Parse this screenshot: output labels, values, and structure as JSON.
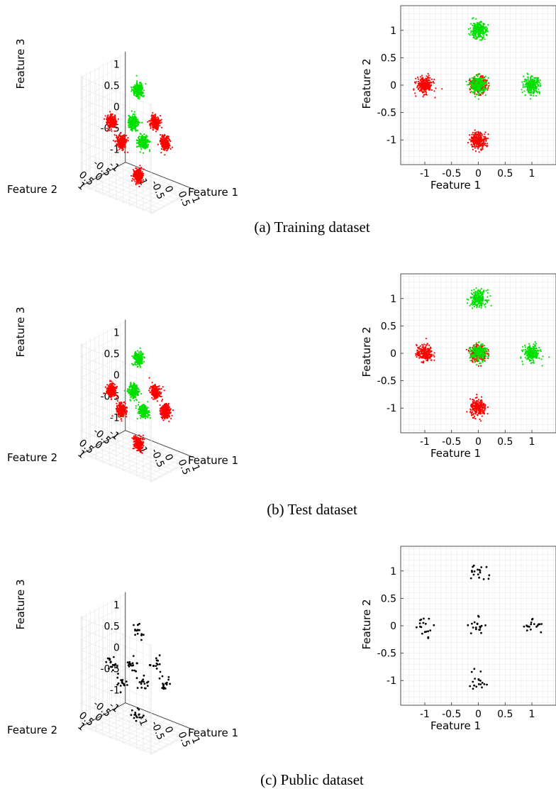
{
  "colors": {
    "class_a": "#ff0000",
    "class_b": "#00e000",
    "public": "#000000",
    "grid": "#e6e6e6",
    "axis": "#262626"
  },
  "panels": [
    {
      "caption": "(a) Training dataset",
      "type": "train"
    },
    {
      "caption": "(b) Test dataset",
      "type": "test"
    },
    {
      "caption": "(c) Public dataset",
      "type": "public"
    }
  ],
  "chart_data": [
    {
      "type": "scatter",
      "dimensions": 3,
      "panel": "(a) Training dataset",
      "axes": {
        "x": "Feature 1",
        "y": "Feature 2",
        "z": "Feature 3"
      },
      "xlim": [
        -1.3,
        1.3
      ],
      "ylim": [
        -1.3,
        1.3
      ],
      "zlim": [
        -1.3,
        1.3
      ],
      "xticks": [
        "-1",
        "-0.5",
        "0",
        "0.5",
        "1"
      ],
      "yticks": [
        "-1",
        "-0.5",
        "0",
        "0.5",
        "1"
      ],
      "zticks": [
        "1",
        "0.5",
        "0",
        "-0.5",
        "-1"
      ],
      "grid": true,
      "series": [
        {
          "color": "#ff0000",
          "clusters": [
            [
              1,
              0,
              0
            ],
            [
              -1,
              0,
              0
            ],
            [
              0,
              1,
              0
            ],
            [
              0,
              -1,
              0
            ],
            [
              0,
              0,
              -1
            ]
          ],
          "points_per_cluster": 260
        },
        {
          "color": "#00e000",
          "clusters": [
            [
              0,
              0,
              1
            ],
            [
              0.5,
              0.5,
              0
            ],
            [
              -0.5,
              -0.5,
              0
            ]
          ],
          "points_per_cluster": 260
        }
      ]
    },
    {
      "type": "scatter",
      "dimensions": 2,
      "panel": "(a) Training dataset",
      "xlabel": "Feature 1",
      "ylabel": "Feature 2",
      "xlim": [
        -1.45,
        1.45
      ],
      "ylim": [
        -1.45,
        1.45
      ],
      "xticks": [
        "-1",
        "-0.5",
        "0",
        "0.5",
        "1"
      ],
      "yticks": [
        "1",
        "0.5",
        "0",
        "-0.5",
        "-1"
      ],
      "grid": true,
      "series": [
        {
          "color": "#ff0000",
          "clusters": [
            [
              -1,
              0
            ],
            [
              0,
              0
            ],
            [
              0,
              -1
            ]
          ],
          "points_per_cluster": 260
        },
        {
          "color": "#00e000",
          "clusters": [
            [
              0,
              1
            ],
            [
              1,
              0
            ],
            [
              0,
              0
            ]
          ],
          "points_per_cluster": 260
        }
      ]
    },
    {
      "type": "scatter",
      "dimensions": 3,
      "panel": "(b) Test dataset",
      "axes": {
        "x": "Feature 1",
        "y": "Feature 2",
        "z": "Feature 3"
      },
      "xlim": [
        -1.3,
        1.3
      ],
      "ylim": [
        -1.3,
        1.3
      ],
      "zlim": [
        -1.3,
        1.3
      ],
      "xticks": [
        "-1",
        "-0.5",
        "0",
        "0.5",
        "1"
      ],
      "yticks": [
        "-1",
        "-0.5",
        "0",
        "0.5",
        "1"
      ],
      "zticks": [
        "1",
        "0.5",
        "0",
        "-0.5",
        "-1"
      ],
      "grid": true,
      "series": [
        {
          "color": "#ff0000",
          "clusters": [
            [
              1,
              0,
              0
            ],
            [
              -1,
              0,
              0
            ],
            [
              0,
              1,
              0
            ],
            [
              0,
              -1,
              0
            ],
            [
              0,
              0,
              -1
            ]
          ],
          "points_per_cluster": 230
        },
        {
          "color": "#00e000",
          "clusters": [
            [
              0,
              0,
              1
            ],
            [
              0.5,
              0.5,
              0
            ],
            [
              -0.5,
              -0.5,
              0
            ]
          ],
          "points_per_cluster": 230
        }
      ]
    },
    {
      "type": "scatter",
      "dimensions": 2,
      "panel": "(b) Test dataset",
      "xlabel": "Feature 1",
      "ylabel": "Feature 2",
      "xlim": [
        -1.45,
        1.45
      ],
      "ylim": [
        -1.45,
        1.45
      ],
      "xticks": [
        "-1",
        "-0.5",
        "0",
        "0.5",
        "1"
      ],
      "yticks": [
        "1",
        "0.5",
        "0",
        "-0.5",
        "-1"
      ],
      "grid": true,
      "series": [
        {
          "color": "#ff0000",
          "clusters": [
            [
              -1,
              0
            ],
            [
              0,
              0
            ],
            [
              0,
              -1
            ]
          ],
          "points_per_cluster": 230
        },
        {
          "color": "#00e000",
          "clusters": [
            [
              0,
              1
            ],
            [
              1,
              0
            ],
            [
              0,
              0
            ]
          ],
          "points_per_cluster": 230
        }
      ]
    },
    {
      "type": "scatter",
      "dimensions": 3,
      "panel": "(c) Public dataset",
      "axes": {
        "x": "Feature 1",
        "y": "Feature 2",
        "z": "Feature 3"
      },
      "xlim": [
        -1.3,
        1.3
      ],
      "ylim": [
        -1.3,
        1.3
      ],
      "zlim": [
        -1.3,
        1.3
      ],
      "xticks": [
        "-1",
        "-0.5",
        "0",
        "0.5",
        "1"
      ],
      "yticks": [
        "-1",
        "-0.5",
        "0",
        "0.5",
        "1"
      ],
      "zticks": [
        "1",
        "0.5",
        "0",
        "-0.5",
        "-1"
      ],
      "grid": true,
      "series": [
        {
          "color": "#000000",
          "clusters": [
            [
              1,
              0,
              0
            ],
            [
              -1,
              0,
              0
            ],
            [
              0,
              1,
              0
            ],
            [
              0,
              -1,
              0
            ],
            [
              0,
              0,
              -1
            ],
            [
              0,
              0,
              1
            ],
            [
              0.5,
              0.5,
              0
            ],
            [
              -0.5,
              -0.5,
              0
            ]
          ],
          "points_per_cluster": 16
        }
      ]
    },
    {
      "type": "scatter",
      "dimensions": 2,
      "panel": "(c) Public dataset",
      "xlabel": "Feature 1",
      "ylabel": "Feature 2",
      "xlim": [
        -1.45,
        1.45
      ],
      "ylim": [
        -1.45,
        1.45
      ],
      "xticks": [
        "-1",
        "-0.5",
        "0",
        "0.5",
        "1"
      ],
      "yticks": [
        "1",
        "0.5",
        "0",
        "-0.5",
        "-1"
      ],
      "grid": true,
      "series": [
        {
          "color": "#000000",
          "clusters": [
            [
              -1,
              0
            ],
            [
              0,
              0
            ],
            [
              0,
              1
            ],
            [
              0,
              -1
            ],
            [
              1,
              0
            ]
          ],
          "points_per_cluster": 18
        }
      ]
    }
  ]
}
